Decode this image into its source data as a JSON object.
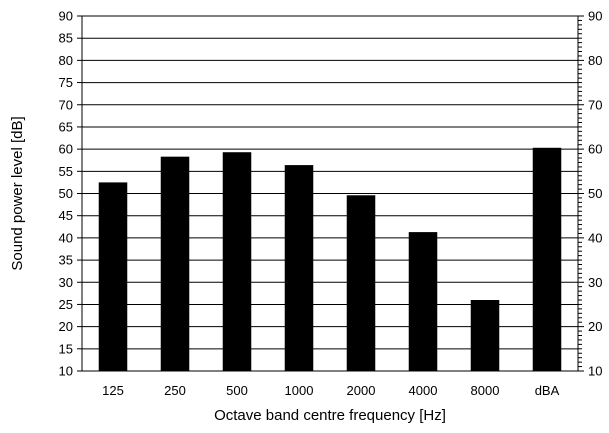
{
  "chart_data": {
    "type": "bar",
    "title": "",
    "xlabel": "Octave band centre frequency [Hz]",
    "ylabel": "Sound power level [dB]",
    "categories": [
      "125",
      "250",
      "500",
      "1000",
      "2000",
      "4000",
      "8000",
      "dBA"
    ],
    "values": [
      52.5,
      58.3,
      59.3,
      56.4,
      49.6,
      41.3,
      26,
      60.3
    ],
    "ylim": [
      10,
      90
    ],
    "yticks": [
      10,
      15,
      20,
      25,
      30,
      35,
      40,
      45,
      50,
      55,
      60,
      65,
      70,
      75,
      80,
      85,
      90
    ],
    "y2ticks": [
      10,
      20,
      30,
      40,
      50,
      60,
      70,
      80,
      90
    ],
    "y2_minor_step": 1,
    "grid": true,
    "legend": "none",
    "bar_color": "#000000"
  }
}
